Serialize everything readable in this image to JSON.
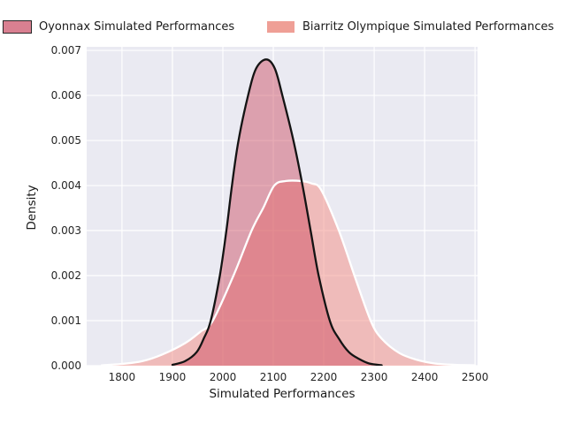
{
  "legend": {
    "items": [
      {
        "label": "Oyonnax Simulated Performances",
        "swatch_fill": "#d98091",
        "swatch_edge": "#262626"
      },
      {
        "label": "Biarritz Olympique Simulated Performances",
        "swatch_fill": "#ef9f96",
        "swatch_edge": "#ffffff"
      }
    ]
  },
  "chart_data": {
    "type": "area",
    "subtype": "kde-density",
    "title": "",
    "xlabel": "Simulated Performances",
    "ylabel": "Density",
    "xlim": [
      1730,
      2505
    ],
    "ylim": [
      0,
      0.00708
    ],
    "grid": true,
    "background_color": "#eaeaf2",
    "gridline_color": "#ffffff",
    "legend_position": "top",
    "x_ticks": [
      1800,
      1900,
      2000,
      2100,
      2200,
      2300,
      2400,
      2500
    ],
    "y_ticks": [
      {
        "value": 0.0,
        "label": "0.000"
      },
      {
        "value": 0.001,
        "label": "0.001"
      },
      {
        "value": 0.002,
        "label": "0.002"
      },
      {
        "value": 0.003,
        "label": "0.003"
      },
      {
        "value": 0.004,
        "label": "0.004"
      },
      {
        "value": 0.005,
        "label": "0.005"
      },
      {
        "value": 0.006,
        "label": "0.006"
      },
      {
        "value": 0.007,
        "label": "0.007"
      }
    ],
    "series": [
      {
        "name": "Oyonnax Simulated Performances",
        "line_color": "#141414",
        "fill_color": "rgba(205,70,90,0.45)",
        "line_width": 2.3,
        "peak": {
          "x": 2086,
          "density": 0.0068
        },
        "points": [
          [
            1900,
            2e-05
          ],
          [
            1925,
            0.0001
          ],
          [
            1948,
            0.0003
          ],
          [
            1962,
            0.0006
          ],
          [
            1976,
            0.001
          ],
          [
            1994,
            0.002
          ],
          [
            2007,
            0.003
          ],
          [
            2018,
            0.004
          ],
          [
            2031,
            0.005
          ],
          [
            2050,
            0.006
          ],
          [
            2066,
            0.0066
          ],
          [
            2086,
            0.0068
          ],
          [
            2103,
            0.0066
          ],
          [
            2118,
            0.006
          ],
          [
            2140,
            0.005
          ],
          [
            2158,
            0.004
          ],
          [
            2174,
            0.003
          ],
          [
            2190,
            0.002
          ],
          [
            2212,
            0.001
          ],
          [
            2230,
            0.0006
          ],
          [
            2250,
            0.0003
          ],
          [
            2270,
            0.00015
          ],
          [
            2290,
            5e-05
          ],
          [
            2315,
            1e-05
          ]
        ]
      },
      {
        "name": "Biarritz Olympique Simulated Performances",
        "line_color": "#ffffff",
        "fill_color": "rgba(244,140,130,0.50)",
        "line_width": 2.3,
        "peak": {
          "x": 2140,
          "density": 0.0041
        },
        "points": [
          [
            1760,
            1e-05
          ],
          [
            1800,
            4e-05
          ],
          [
            1840,
            0.0001
          ],
          [
            1880,
            0.00025
          ],
          [
            1925,
            0.0005
          ],
          [
            1955,
            0.00075
          ],
          [
            1980,
            0.001
          ],
          [
            2021,
            0.002
          ],
          [
            2057,
            0.003
          ],
          [
            2080,
            0.0035
          ],
          [
            2102,
            0.004
          ],
          [
            2125,
            0.0041
          ],
          [
            2155,
            0.0041
          ],
          [
            2175,
            0.00405
          ],
          [
            2195,
            0.0039
          ],
          [
            2230,
            0.003
          ],
          [
            2261,
            0.002
          ],
          [
            2293,
            0.001
          ],
          [
            2315,
            0.0006
          ],
          [
            2350,
            0.00028
          ],
          [
            2385,
            0.00013
          ],
          [
            2420,
            5e-05
          ],
          [
            2460,
            2e-05
          ],
          [
            2500,
            1e-05
          ]
        ]
      }
    ]
  }
}
